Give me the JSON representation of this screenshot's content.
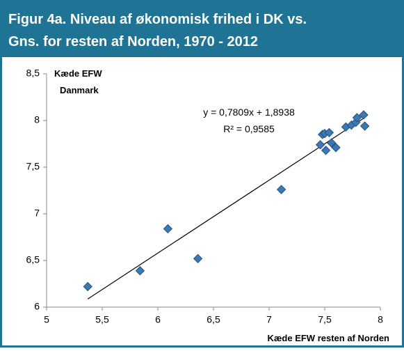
{
  "chart_data": {
    "type": "scatter",
    "title_lines": [
      "Figur 4a. Niveau af økonomisk frihed i DK vs.",
      "Gns. for resten af Norden, 1970 - 2012"
    ],
    "y_label_lines": [
      "Kæde EFW",
      "Danmark"
    ],
    "x_label": "Kæde EFW resten af Norden",
    "annotations": [
      "y = 0,7809x + 1,8938",
      "R² = 0,9585"
    ],
    "trendline": {
      "slope": 0.7809,
      "intercept": 1.8938
    },
    "color": "#3b78b5",
    "x": [
      5.37,
      5.84,
      6.09,
      6.36,
      7.11,
      7.46,
      7.48,
      7.5,
      7.54,
      7.51,
      7.56,
      7.6,
      7.69,
      7.74,
      7.78,
      7.79,
      7.85,
      7.86
    ],
    "y": [
      6.22,
      6.39,
      6.84,
      6.52,
      7.26,
      7.74,
      7.85,
      7.86,
      7.87,
      7.68,
      7.76,
      7.71,
      7.93,
      7.95,
      7.98,
      8.03,
      8.06,
      7.94
    ],
    "xlim": [
      5,
      8
    ],
    "xticks": [
      5,
      {
        "value": 5.5,
        "label": "5,5"
      },
      6,
      {
        "value": 6.5,
        "label": "6,5"
      },
      7,
      {
        "value": 7.5,
        "label": "7,5"
      },
      8
    ],
    "ylim": [
      6,
      8.5
    ],
    "yticks": [
      6,
      {
        "value": 6.5,
        "label": "6,5"
      },
      7,
      {
        "value": 7.5,
        "label": "7,5"
      },
      8,
      {
        "value": 8.5,
        "label": "8,5"
      }
    ]
  }
}
